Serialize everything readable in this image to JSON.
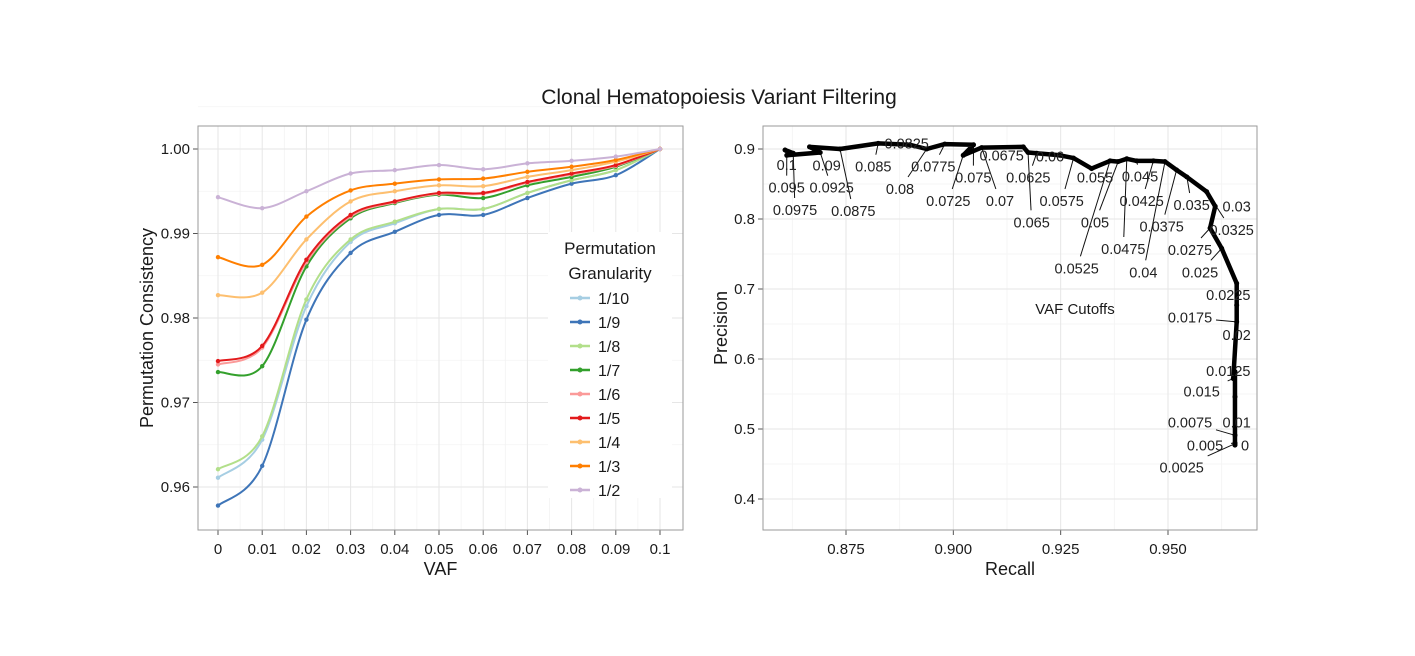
{
  "title": "Clonal Hematopoiesis Variant Filtering",
  "chart_data": [
    {
      "type": "line",
      "xlabel": "VAF",
      "ylabel": "Permutation Consistency",
      "xlim": [
        0,
        0.1
      ],
      "ylim": [
        0.955,
        1.002
      ],
      "x_ticks": [
        "0",
        "0.01",
        "0.02",
        "0.03",
        "0.04",
        "0.05",
        "0.06",
        "0.07",
        "0.08",
        "0.09",
        "0.1"
      ],
      "y_ticks": [
        "0.96",
        "0.97",
        "0.98",
        "0.99",
        "1.00"
      ],
      "grid": true,
      "legend": {
        "title_line1": "Permutation",
        "title_line2": "Granularity",
        "placement": "right-inside"
      },
      "x": [
        0,
        0.01,
        0.02,
        0.03,
        0.04,
        0.05,
        0.06,
        0.07,
        0.08,
        0.09,
        0.1
      ],
      "series": [
        {
          "name": "1/10",
          "color": "#a6cee3",
          "values": [
            0.9611,
            0.9656,
            0.9814,
            0.989,
            0.9912,
            0.9929,
            0.9929,
            0.9948,
            0.9963,
            0.9975,
            1.0
          ]
        },
        {
          "name": "1/9",
          "color": "#3e75b8",
          "values": [
            0.9578,
            0.9625,
            0.9798,
            0.9877,
            0.9902,
            0.9922,
            0.9922,
            0.9942,
            0.9959,
            0.9969,
            1.0
          ]
        },
        {
          "name": "1/8",
          "color": "#b2df8a",
          "values": [
            0.9621,
            0.966,
            0.9822,
            0.9893,
            0.9914,
            0.9929,
            0.9929,
            0.9948,
            0.9963,
            0.9975,
            1.0
          ]
        },
        {
          "name": "1/7",
          "color": "#33a02c",
          "values": [
            0.9736,
            0.9743,
            0.9861,
            0.9918,
            0.9936,
            0.9946,
            0.9942,
            0.9957,
            0.9967,
            0.9979,
            1.0
          ]
        },
        {
          "name": "1/6",
          "color": "#fb9a99",
          "values": [
            0.9745,
            0.9765,
            0.9866,
            0.992,
            0.9937,
            0.9947,
            0.9947,
            0.996,
            0.997,
            0.998,
            1.0
          ]
        },
        {
          "name": "1/5",
          "color": "#e31a1c",
          "values": [
            0.9749,
            0.9767,
            0.9869,
            0.9922,
            0.9938,
            0.9948,
            0.9948,
            0.9961,
            0.9971,
            0.9981,
            1.0
          ]
        },
        {
          "name": "1/4",
          "color": "#fdbf6f",
          "values": [
            0.9827,
            0.983,
            0.9893,
            0.9938,
            0.995,
            0.9957,
            0.9956,
            0.9967,
            0.9975,
            0.9985,
            1.0
          ]
        },
        {
          "name": "1/3",
          "color": "#ff7f00",
          "values": [
            0.9872,
            0.9863,
            0.992,
            0.9951,
            0.9959,
            0.9964,
            0.9965,
            0.9973,
            0.9979,
            0.9987,
            1.0
          ]
        },
        {
          "name": "1/2",
          "color": "#cab2d6",
          "values": [
            0.9943,
            0.993,
            0.995,
            0.9971,
            0.9975,
            0.9981,
            0.9976,
            0.9983,
            0.9986,
            0.9991,
            1.0
          ]
        }
      ]
    },
    {
      "type": "line",
      "xlabel": "Recall",
      "ylabel": "Precision",
      "xlim": [
        0.8555,
        0.9695
      ],
      "ylim": [
        0.355,
        0.933
      ],
      "x_ticks": [
        "0.875",
        "0.900",
        "0.925",
        "0.950"
      ],
      "y_ticks": [
        "0.4",
        "0.5",
        "0.6",
        "0.7",
        "0.8",
        "0.9"
      ],
      "grid": true,
      "annotation": "VAF Cutoffs",
      "points": [
        {
          "cutoff": "0.1",
          "recall": 0.8608,
          "precision": 0.8986
        },
        {
          "cutoff": "0.0975",
          "recall": 0.8627,
          "precision": 0.894
        },
        {
          "cutoff": "0.095",
          "recall": 0.8612,
          "precision": 0.891
        },
        {
          "cutoff": "0.0925",
          "recall": 0.869,
          "precision": 0.895
        },
        {
          "cutoff": "0.09",
          "recall": 0.8665,
          "precision": 0.903
        },
        {
          "cutoff": "0.0875",
          "recall": 0.8736,
          "precision": 0.9
        },
        {
          "cutoff": "0.085",
          "recall": 0.8825,
          "precision": 0.908
        },
        {
          "cutoff": "0.0825",
          "recall": 0.8899,
          "precision": 0.906
        },
        {
          "cutoff": "0.08",
          "recall": 0.8938,
          "precision": 0.9
        },
        {
          "cutoff": "0.0775",
          "recall": 0.898,
          "precision": 0.907
        },
        {
          "cutoff": "0.075",
          "recall": 0.9047,
          "precision": 0.906
        },
        {
          "cutoff": "0.0725",
          "recall": 0.9023,
          "precision": 0.891
        },
        {
          "cutoff": "0.07",
          "recall": 0.9066,
          "precision": 0.902
        },
        {
          "cutoff": "0.0675",
          "recall": 0.9163,
          "precision": 0.903
        },
        {
          "cutoff": "0.065",
          "recall": 0.9174,
          "precision": 0.895
        },
        {
          "cutoff": "0.0625",
          "recall": 0.9194,
          "precision": 0.894
        },
        {
          "cutoff": "0.06",
          "recall": 0.9248,
          "precision": 0.891
        },
        {
          "cutoff": "0.0575",
          "recall": 0.928,
          "precision": 0.887
        },
        {
          "cutoff": "0.055",
          "recall": 0.9322,
          "precision": 0.872
        },
        {
          "cutoff": "0.0525",
          "recall": 0.9365,
          "precision": 0.883
        },
        {
          "cutoff": "0.05",
          "recall": 0.9384,
          "precision": 0.882
        },
        {
          "cutoff": "0.0475",
          "recall": 0.9404,
          "precision": 0.886
        },
        {
          "cutoff": "0.045",
          "recall": 0.9427,
          "precision": 0.883
        },
        {
          "cutoff": "0.0425",
          "recall": 0.9466,
          "precision": 0.883
        },
        {
          "cutoff": "0.04",
          "recall": 0.9493,
          "precision": 0.882
        },
        {
          "cutoff": "0.0375",
          "recall": 0.952,
          "precision": 0.87
        },
        {
          "cutoff": "0.035",
          "recall": 0.9544,
          "precision": 0.86
        },
        {
          "cutoff": "0.0325",
          "recall": 0.959,
          "precision": 0.839
        },
        {
          "cutoff": "0.03",
          "recall": 0.961,
          "precision": 0.818
        },
        {
          "cutoff": "0.0275",
          "recall": 0.9598,
          "precision": 0.787
        },
        {
          "cutoff": "0.025",
          "recall": 0.9625,
          "precision": 0.758
        },
        {
          "cutoff": "0.0225",
          "recall": 0.966,
          "precision": 0.708
        },
        {
          "cutoff": "0.02",
          "recall": 0.966,
          "precision": 0.677
        },
        {
          "cutoff": "0.0175",
          "recall": 0.966,
          "precision": 0.653
        },
        {
          "cutoff": "0.015",
          "recall": 0.9652,
          "precision": 0.572
        },
        {
          "cutoff": "0.0125",
          "recall": 0.9656,
          "precision": 0.582
        },
        {
          "cutoff": "0.01",
          "recall": 0.9656,
          "precision": 0.546
        },
        {
          "cutoff": "0.0075",
          "recall": 0.9656,
          "precision": 0.491
        },
        {
          "cutoff": "0.005",
          "recall": 0.9656,
          "precision": 0.48
        },
        {
          "cutoff": "0.0025",
          "recall": 0.9656,
          "precision": 0.479
        },
        {
          "cutoff": "0",
          "recall": 0.9656,
          "precision": 0.477
        }
      ]
    }
  ]
}
